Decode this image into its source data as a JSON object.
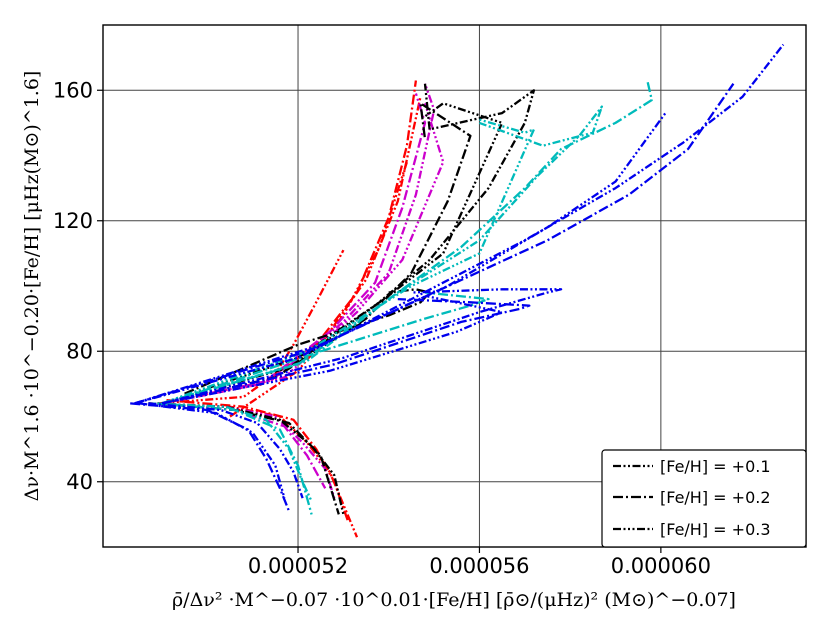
{
  "chart_data": {
    "type": "line",
    "title": "",
    "xlabel": "ρ̄/Δν² ·M^−0.07 ·10^0.01·[Fe/H] [ρ̄⊙/(μHz)² (M⊙)^−0.07]",
    "ylabel": "Δν·M^1.6 ·10^−0.20·[Fe/H] [μHz(M⊙)^1.6]",
    "xlim": [
      4.77e-05,
      6.32e-05
    ],
    "ylim": [
      20,
      180
    ],
    "grid": true,
    "x_ticks": [
      5.2e-05,
      5.6e-05,
      6e-05
    ],
    "x_tick_labels": [
      "0.000052",
      "0.000056",
      "0.000060"
    ],
    "y_ticks": [
      40,
      80,
      120,
      160
    ],
    "y_tick_labels": [
      "40",
      "80",
      "120",
      "160"
    ],
    "legend_position": "lower right",
    "legend": [
      {
        "label": "[Fe/H] = +0.1",
        "dash": "dash-dot-dot"
      },
      {
        "label": "[Fe/H] = +0.2",
        "dash": "dash-dot"
      },
      {
        "label": "[Fe/H] = +0.3",
        "dash": "dash-dot-dot-dot"
      }
    ],
    "series": [
      {
        "color": "#ff0000",
        "dash": "dash-dot-dot",
        "x": [
          4.87e-05,
          5.05e-05,
          5.16e-05,
          5.22e-05,
          5.27e-05,
          5.3e-05,
          5.33e-05
        ],
        "y": [
          64,
          63,
          60,
          52,
          43,
          33,
          23
        ]
      },
      {
        "color": "#ff0000",
        "dash": "dash-dot",
        "x": [
          4.91e-05,
          5.08e-05,
          5.19e-05,
          5.24e-05,
          5.28e-05,
          5.31e-05
        ],
        "y": [
          65,
          63,
          59,
          50,
          40,
          28
        ]
      },
      {
        "color": "#ff0000",
        "dash": "dash-dot-dot-dot",
        "x": [
          4.89e-05,
          5.08e-05,
          5.15e-05,
          5.19e-05,
          5.24e-05,
          5.3e-05
        ],
        "y": [
          64,
          66,
          73,
          82,
          95,
          111
        ]
      },
      {
        "color": "#ff0000",
        "dash": "dash-dot",
        "x": [
          4.9e-05,
          5.12e-05,
          5.24e-05,
          5.33e-05,
          5.4e-05,
          5.44e-05,
          5.46e-05
        ],
        "y": [
          64,
          70,
          82,
          98,
          121,
          143,
          163
        ]
      },
      {
        "color": "#ff0000",
        "dash": "dash-dot-dot",
        "x": [
          4.9e-05,
          5.14e-05,
          5.26e-05,
          5.35e-05,
          5.42e-05,
          5.47e-05
        ],
        "y": [
          64,
          71,
          84,
          102,
          126,
          158
        ]
      },
      {
        "color": "#ff0000",
        "dash": "dash-dot-dot-dot",
        "x": [
          5.05e-05,
          5.2e-05,
          5.3e-05,
          5.38e-05,
          5.44e-05
        ],
        "y": [
          60,
          74,
          91,
          112,
          138
        ]
      },
      {
        "color": "#cc00cc",
        "dash": "dash-dot-dot",
        "x": [
          4.87e-05,
          5.04e-05,
          5.15e-05,
          5.21e-05,
          5.26e-05,
          5.28e-05
        ],
        "y": [
          64,
          63,
          60,
          52,
          44,
          35
        ]
      },
      {
        "color": "#cc00cc",
        "dash": "dash-dot",
        "x": [
          4.89e-05,
          5.06e-05,
          5.17e-05,
          5.22e-05,
          5.26e-05
        ],
        "y": [
          64,
          62,
          57,
          48,
          38
        ]
      },
      {
        "color": "#cc00cc",
        "dash": "dash-dot",
        "x": [
          4.9e-05,
          5.12e-05,
          5.27e-05,
          5.37e-05,
          5.43e-05,
          5.48e-05,
          5.46e-05
        ],
        "y": [
          64,
          70,
          86,
          101,
          124,
          150,
          159
        ]
      },
      {
        "color": "#cc00cc",
        "dash": "dash-dot-dot",
        "x": [
          4.9e-05,
          5.14e-05,
          5.3e-05,
          5.4e-05,
          5.46e-05,
          5.5e-05,
          5.48e-05
        ],
        "y": [
          64,
          71,
          89,
          104,
          128,
          154,
          162
        ]
      },
      {
        "color": "#cc00cc",
        "dash": "dash-dot-dot-dot",
        "x": [
          4.9e-05,
          5.17e-05,
          5.33e-05,
          5.43e-05,
          5.52e-05,
          5.48e-05
        ],
        "y": [
          64,
          72,
          92,
          108,
          138,
          156
        ]
      },
      {
        "color": "#000000",
        "dash": "dash-dot-dot",
        "x": [
          4.87e-05,
          5.04e-05,
          5.16e-05,
          5.23e-05,
          5.28e-05,
          5.3e-05
        ],
        "y": [
          64,
          63,
          59,
          51,
          42,
          30
        ]
      },
      {
        "color": "#000000",
        "dash": "dash-dot",
        "x": [
          4.89e-05,
          5.06e-05,
          5.18e-05,
          5.25e-05,
          5.29e-05
        ],
        "y": [
          64,
          62,
          58,
          48,
          30
        ]
      },
      {
        "color": "#000000",
        "dash": "dash-dot",
        "x": [
          4.9e-05,
          5.15e-05,
          5.35e-05,
          5.45e-05,
          5.53e-05,
          5.58e-05,
          5.47e-05,
          5.48e-05
        ],
        "y": [
          64,
          72,
          90,
          104,
          126,
          146,
          156,
          145
        ]
      },
      {
        "color": "#000000",
        "dash": "dash-dot-dot",
        "x": [
          4.9e-05,
          5.18e-05,
          5.37e-05,
          5.49e-05,
          5.62e-05,
          5.7e-05,
          5.72e-05,
          5.65e-05,
          5.49e-05,
          5.48e-05
        ],
        "y": [
          64,
          75,
          94,
          108,
          130,
          150,
          160,
          153,
          148,
          162
        ]
      },
      {
        "color": "#000000",
        "dash": "dash-dot-dot-dot",
        "x": [
          4.9e-05,
          5.2e-05,
          5.39e-05,
          5.52e-05,
          5.65e-05,
          5.52e-05,
          5.48e-05
        ],
        "y": [
          64,
          78,
          96,
          110,
          150,
          156,
          152
        ]
      },
      {
        "color": "#000000",
        "dash": "dash-dot",
        "x": [
          4.95e-05,
          5.2e-05,
          5.4e-05,
          5.47e-05,
          5.49e-05,
          5.46e-05,
          5.4e-05
        ],
        "y": [
          67,
          82,
          91,
          95,
          98,
          99,
          98
        ]
      },
      {
        "color": "#00bbbb",
        "dash": "dash-dot-dot",
        "x": [
          4.87e-05,
          5.04e-05,
          5.13e-05,
          5.18e-05,
          5.21e-05,
          5.23e-05
        ],
        "y": [
          64,
          63,
          59,
          50,
          40,
          34
        ]
      },
      {
        "color": "#00bbbb",
        "dash": "dash-dot",
        "x": [
          4.89e-05,
          5.06e-05,
          5.16e-05,
          5.2e-05,
          5.23e-05
        ],
        "y": [
          64,
          62,
          56,
          45,
          30
        ]
      },
      {
        "color": "#00bbbb",
        "dash": "dash-dot",
        "x": [
          4.9e-05,
          5.2e-05,
          5.4e-05,
          5.56e-05,
          5.7e-05,
          5.78e-05,
          5.9e-05,
          5.98e-05,
          5.97e-05
        ],
        "y": [
          64,
          76,
          96,
          112,
          130,
          142,
          150,
          157,
          163
        ]
      },
      {
        "color": "#00bbbb",
        "dash": "dash-dot-dot",
        "x": [
          4.9e-05,
          5.22e-05,
          5.42e-05,
          5.6e-05,
          5.73e-05,
          5.82e-05,
          5.87e-05,
          5.85e-05,
          5.74e-05,
          5.6e-05
        ],
        "y": [
          64,
          77,
          98,
          114,
          134,
          146,
          155,
          147,
          143,
          150
        ]
      },
      {
        "color": "#00bbbb",
        "dash": "dash-dot-dot-dot",
        "x": [
          4.9e-05,
          5.22e-05,
          5.45e-05,
          5.6e-05,
          5.72e-05,
          5.7e-05,
          5.6e-05
        ],
        "y": [
          64,
          80,
          100,
          110,
          148,
          147,
          151
        ]
      },
      {
        "color": "#00bbbb",
        "dash": "dash-dot",
        "x": [
          4.95e-05,
          5.25e-05,
          5.48e-05,
          5.58e-05,
          5.62e-05,
          5.48e-05
        ],
        "y": [
          66,
          80,
          90,
          94,
          96,
          98
        ]
      },
      {
        "color": "#0000ee",
        "dash": "dash-dot-dot",
        "x": [
          4.87e-05,
          5.03e-05,
          5.11e-05,
          5.16e-05,
          5.19e-05,
          5.21e-05
        ],
        "y": [
          64,
          62,
          58,
          50,
          43,
          35
        ]
      },
      {
        "color": "#0000ee",
        "dash": "dash-dot",
        "x": [
          4.83e-05,
          5e-05,
          5.09e-05,
          5.13e-05,
          5.16e-05,
          5.18e-05
        ],
        "y": [
          64,
          62,
          56,
          47,
          38,
          31
        ]
      },
      {
        "color": "#0000ee",
        "dash": "dash-dot-dot-dot",
        "x": [
          4.85e-05,
          5.02e-05,
          5.1e-05,
          5.15e-05,
          5.17e-05
        ],
        "y": [
          64,
          61,
          55,
          45,
          35
        ]
      },
      {
        "color": "#0000ee",
        "dash": "dash-dot-dot",
        "x": [
          4.84e-05,
          5.2e-05,
          5.45e-05,
          5.7e-05,
          5.9e-05,
          6.05e-05,
          6.18e-05,
          6.27e-05
        ],
        "y": [
          64,
          78,
          96,
          114,
          130,
          144,
          158,
          174
        ]
      },
      {
        "color": "#0000ee",
        "dash": "dash-dot",
        "x": [
          4.84e-05,
          5.22e-05,
          5.5e-05,
          5.75e-05,
          5.93e-05,
          6.06e-05,
          6.16e-05
        ],
        "y": [
          64,
          80,
          98,
          114,
          128,
          142,
          162
        ]
      },
      {
        "color": "#0000ee",
        "dash": "dash-dot-dot-dot",
        "x": [
          4.84e-05,
          5.25e-05,
          5.53e-05,
          5.75e-05,
          5.9e-05,
          6.01e-05
        ],
        "y": [
          64,
          82,
          100,
          118,
          132,
          153
        ]
      },
      {
        "color": "#0000ee",
        "dash": "dash-dot-dot",
        "x": [
          4.9e-05,
          5.3e-05,
          5.6e-05,
          5.75e-05,
          5.78e-05,
          5.65e-05,
          5.45e-05
        ],
        "y": [
          64,
          78,
          92,
          98,
          99,
          99,
          98
        ]
      },
      {
        "color": "#0000ee",
        "dash": "dash-dot",
        "x": [
          4.9e-05,
          5.28e-05,
          5.56e-05,
          5.69e-05,
          5.71e-05,
          5.58e-05,
          5.42e-05
        ],
        "y": [
          64,
          76,
          89,
          93,
          94,
          95,
          96
        ]
      },
      {
        "color": "#0000ee",
        "dash": "dash-dot-dot-dot",
        "x": [
          4.9e-05,
          5.27e-05,
          5.55e-05,
          5.65e-05,
          5.48e-05
        ],
        "y": [
          64,
          74,
          86,
          92,
          97
        ]
      }
    ]
  }
}
